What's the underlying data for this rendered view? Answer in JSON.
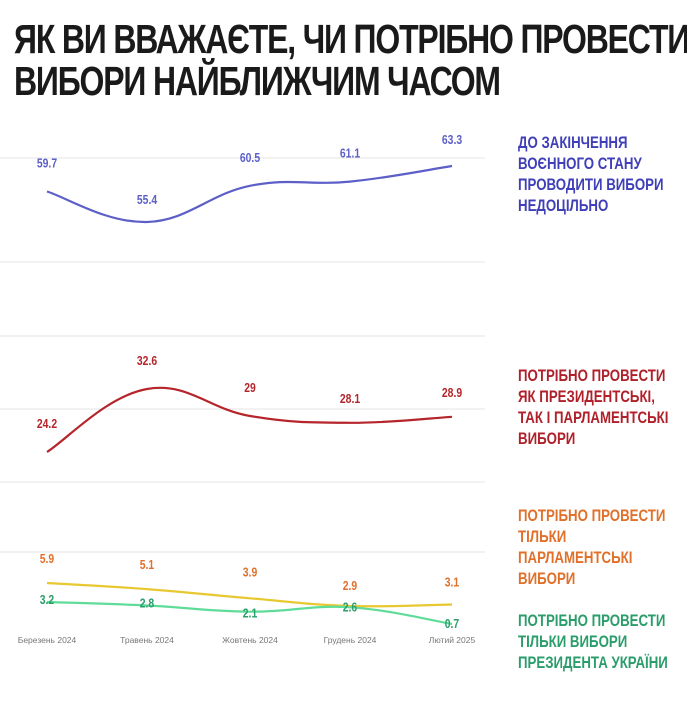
{
  "title_lines": [
    "ЯК ВИ ВВАЖАЄТЕ, ЧИ ПОТРІБНО ПРОВЕСТИ",
    "ВИБОРИ НАЙБЛИЖЧИМ ЧАСОМ"
  ],
  "chart_data": {
    "type": "line",
    "title": "ЯК ВИ ВВАЖАЄТЕ, ЧИ ПОТРІБНО ПРОВЕСТИ ВИБОРИ НАЙБЛИЖЧИМ ЧАСОМ",
    "categories": [
      "Березень 2024",
      "Травень 2024",
      "Жовтень 2024",
      "Грудень 2024",
      "Лютий 2025"
    ],
    "grid": true,
    "legend": "right",
    "series": [
      {
        "name": "ДО ЗАКІНЧЕННЯ ВОЄННОГО СТАНУ ПРОВОДИТИ ВИБОРИ НЕДОЦІЛЬНО",
        "name_lines": [
          "ДО ЗАКІНЧЕННЯ",
          "ВОЄННОГО СТАНУ",
          "ПРОВОДИТИ ВИБОРИ",
          "НЕДОЦІЛЬНО"
        ],
        "values": [
          59.7,
          55.4,
          60.5,
          61.1,
          63.3
        ],
        "labels": [
          "59.7",
          "55.4",
          "60.5",
          "61.1",
          "63.3"
        ],
        "color": "#5b5fc7"
      },
      {
        "name": "ПОТРІБНО ПРОВЕСТИ ЯК ПРЕЗИДЕНТСЬКІ, ТАК І ПАРЛАМЕНТСЬКІ ВИБОРИ",
        "name_lines": [
          "ПОТРІБНО ПРОВЕСТИ",
          "ЯК ПРЕЗИДЕНТСЬКІ,",
          "ТАК І ПАРЛАМЕНТСЬКІ",
          "ВИБОРИ"
        ],
        "values": [
          24.2,
          32.6,
          29,
          28.1,
          28.9
        ],
        "labels": [
          "24.2",
          "32.6",
          "29",
          "28.1",
          "28.9"
        ],
        "color": "#b5252b"
      },
      {
        "name": "ПОТРІБНО ПРОВЕСТИ ТІЛЬКИ ПАРЛАМЕНТСЬКІ ВИБОРИ",
        "name_lines": [
          "ПОТРІБНО ПРОВЕСТИ",
          "ТІЛЬКИ",
          "ПАРЛАМЕНТСЬКІ",
          "ВИБОРИ"
        ],
        "values": [
          5.9,
          5.1,
          3.9,
          2.9,
          3.1
        ],
        "labels": [
          "5.9",
          "5.1",
          "3.9",
          "2.9",
          "3.1"
        ],
        "color": "#e8c830",
        "label_color": "#e0702a"
      },
      {
        "name": "ПОТРІБНО ПРОВЕСТИ ТІЛЬКИ ВИБОРИ ПРЕЗИДЕНТА УКРАЇНИ",
        "name_lines": [
          "ПОТРІБНО ПРОВЕСТИ",
          "ТІЛЬКИ ВИБОРИ",
          "ПРЕЗИДЕНТА УКРАЇНИ"
        ],
        "values": [
          3.2,
          2.8,
          2.1,
          2.6,
          0.7
        ],
        "labels": [
          "3.2",
          "2.8",
          "2.1",
          "2.6",
          "0.7"
        ],
        "color": "#5fdc9a",
        "label_color": "#2a9d6a"
      }
    ]
  }
}
